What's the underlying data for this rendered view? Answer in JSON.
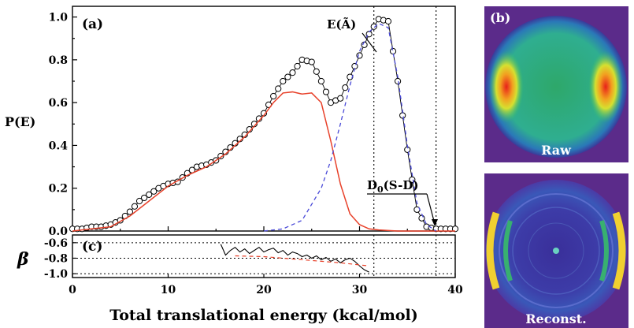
{
  "panel_a": {
    "label": "(a)",
    "ylabel": "P(E)",
    "annotation_state": "E(Ã)",
    "annotation_d0_main": "D",
    "annotation_d0_sub": "0",
    "annotation_d0_rest": "(S-D)"
  },
  "panel_c": {
    "label": "(c)",
    "ylabel": "β"
  },
  "panel_b": {
    "label": "(b)",
    "raw_caption": "Raw",
    "recon_caption": "Reconst."
  },
  "xlabel": "Total translational energy (kcal/mol)",
  "colors": {
    "fit": "#e8412a",
    "dashed": "#4a4ad8",
    "image_bg": "#5b2b8a"
  },
  "chart_data": [
    {
      "type": "line",
      "panel": "(a)",
      "xlim": [
        0,
        40
      ],
      "ylim": [
        0,
        1.05
      ],
      "xticks": [
        0,
        10,
        20,
        30,
        40
      ],
      "yticks": [
        "0.0",
        "0.2",
        "0.4",
        "0.6",
        "0.8",
        "1.0"
      ],
      "ylabel": "P(E)",
      "vertical_lines": [
        31.5,
        38.0
      ],
      "series": [
        {
          "style": "open-circles",
          "x": [
            0,
            1,
            2,
            3,
            4,
            5,
            6,
            7,
            8,
            9,
            10,
            11,
            12,
            13,
            14,
            15,
            16,
            17,
            18,
            19,
            20,
            21,
            22,
            23,
            24,
            25,
            26,
            27,
            28,
            29,
            30,
            31,
            32,
            33,
            34,
            35,
            36,
            37,
            38,
            39,
            40
          ],
          "y": [
            0.01,
            0.01,
            0.02,
            0.02,
            0.03,
            0.05,
            0.09,
            0.14,
            0.17,
            0.2,
            0.22,
            0.23,
            0.27,
            0.3,
            0.31,
            0.33,
            0.37,
            0.41,
            0.45,
            0.5,
            0.55,
            0.63,
            0.7,
            0.74,
            0.8,
            0.79,
            0.7,
            0.6,
            0.62,
            0.72,
            0.82,
            0.92,
            0.99,
            0.98,
            0.7,
            0.38,
            0.1,
            0.02,
            0.01,
            0.01,
            0.01
          ]
        },
        {
          "style": "red-solid",
          "x": [
            0,
            2,
            4,
            6,
            8,
            10,
            12,
            14,
            16,
            18,
            20,
            21,
            22,
            23,
            24,
            25,
            26,
            27,
            28,
            29,
            30,
            31,
            32,
            34,
            36,
            38,
            40
          ],
          "y": [
            0,
            0.01,
            0.02,
            0.07,
            0.14,
            0.21,
            0.26,
            0.3,
            0.36,
            0.44,
            0.54,
            0.6,
            0.645,
            0.65,
            0.64,
            0.645,
            0.6,
            0.42,
            0.22,
            0.08,
            0.03,
            0.01,
            0.005,
            0,
            0,
            0,
            0
          ]
        },
        {
          "style": "blue-dashed",
          "x": [
            20,
            22,
            24,
            26,
            27,
            28,
            29,
            30,
            31,
            32,
            33,
            34,
            35,
            36,
            37,
            38
          ],
          "y": [
            0,
            0.01,
            0.05,
            0.2,
            0.33,
            0.5,
            0.68,
            0.84,
            0.93,
            0.97,
            0.95,
            0.72,
            0.4,
            0.13,
            0.03,
            0
          ]
        }
      ]
    },
    {
      "type": "line",
      "panel": "(c)",
      "xlim": [
        0,
        40
      ],
      "ylim": [
        -1.05,
        -0.5
      ],
      "yticks": [
        "-0.6",
        "-0.8",
        "-1.0"
      ],
      "ylabel": "β",
      "hlines": [
        -0.6,
        -0.8,
        -1.0
      ],
      "series": [
        {
          "style": "black-solid",
          "x": [
            15.5,
            16,
            16.5,
            17,
            17.5,
            18,
            18.5,
            19,
            19.5,
            20,
            20.5,
            21,
            21.5,
            22,
            22.5,
            23,
            23.5,
            24,
            24.5,
            25,
            25.5,
            26,
            26.5,
            27,
            27.5,
            28,
            28.5,
            29,
            29.5,
            30,
            30.5,
            31
          ],
          "y": [
            -0.62,
            -0.76,
            -0.7,
            -0.66,
            -0.72,
            -0.68,
            -0.74,
            -0.7,
            -0.66,
            -0.72,
            -0.69,
            -0.67,
            -0.73,
            -0.7,
            -0.76,
            -0.72,
            -0.74,
            -0.78,
            -0.76,
            -0.8,
            -0.77,
            -0.82,
            -0.79,
            -0.84,
            -0.81,
            -0.86,
            -0.82,
            -0.8,
            -0.84,
            -0.9,
            -0.95,
            -0.98
          ]
        },
        {
          "style": "red-dashed",
          "x": [
            17,
            20,
            24,
            28,
            31
          ],
          "y": [
            -0.77,
            -0.78,
            -0.82,
            -0.86,
            -0.9
          ]
        }
      ]
    }
  ]
}
